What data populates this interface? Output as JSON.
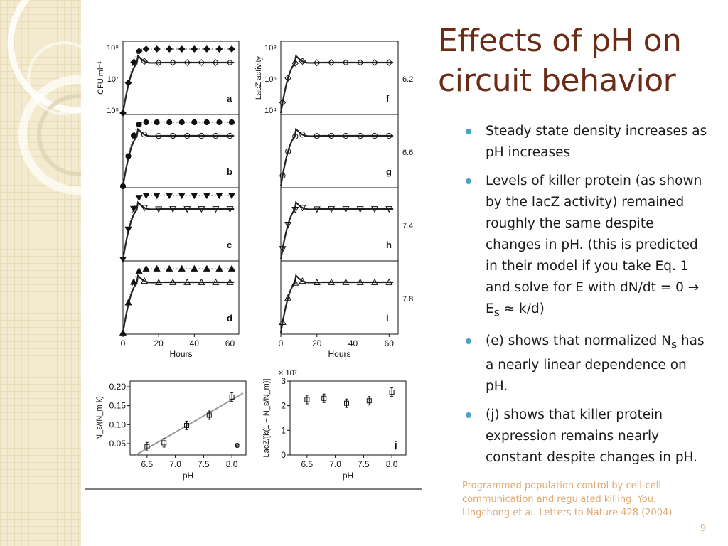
{
  "slide": {
    "title": "Effects of pH on circuit behavior",
    "bullets": [
      {
        "pre": "Steady state density increases as pH increases",
        "sub": "",
        "post": ""
      },
      {
        "pre": "Levels of killer protein (as shown by the lacZ activity) remained roughly the same despite changes in pH. (this is predicted in their model if you take Eq. 1 and solve for E with dN/dt = 0 → E",
        "sub": "s",
        "post": " ≈ k/d)"
      },
      {
        "pre": "(e) shows that normalized N",
        "sub": "s",
        "post": " has a nearly linear dependence on pH."
      },
      {
        "pre": "(j) shows that killer protein expression remains nearly constant despite changes in pH.",
        "sub": "",
        "post": ""
      }
    ],
    "citation": "Programmed population control by cell-cell communication and regulated killing. You, Lingchong et al. Letters to Nature 428 (2004)",
    "page_number": "9"
  },
  "colors": {
    "title": "#6b2c17",
    "bullet": "#4aa3c0",
    "citation": "#e0a872"
  },
  "chart_data": [
    {
      "type": "scatter",
      "panel": "a-d",
      "xlabel": "Hours",
      "ylabel": "CFU ml⁻¹",
      "log_y": true,
      "xlim": [
        0,
        65
      ],
      "xticks": [
        "0",
        "20",
        "40",
        "60"
      ],
      "yticks": [
        "10⁵",
        "10⁷",
        "10⁹"
      ],
      "panels": [
        {
          "letter": "a",
          "marker": "diamond"
        },
        {
          "letter": "b",
          "marker": "circle"
        },
        {
          "letter": "c",
          "marker": "triangle-down"
        },
        {
          "letter": "d",
          "marker": "triangle-up"
        }
      ]
    },
    {
      "type": "scatter",
      "panel": "f-i",
      "xlabel": "Hours",
      "ylabel": "LacZ activity",
      "log_y": true,
      "xlim": [
        0,
        65
      ],
      "xticks": [
        "0",
        "20",
        "40",
        "60"
      ],
      "yticks": [
        "10⁴",
        "10⁶",
        "10⁸"
      ],
      "panels": [
        {
          "letter": "f",
          "marker": "diamond",
          "ph": "6.2"
        },
        {
          "letter": "g",
          "marker": "circle",
          "ph": "6.6"
        },
        {
          "letter": "h",
          "marker": "triangle-down",
          "ph": "7.4"
        },
        {
          "letter": "i",
          "marker": "triangle-up",
          "ph": "7.8"
        }
      ]
    },
    {
      "type": "scatter",
      "panel": "e",
      "letter": "e",
      "xlabel": "pH",
      "ylabel": "N_s/(N_m k)",
      "xlim": [
        6.2,
        8.25
      ],
      "ylim": [
        0.02,
        0.215
      ],
      "xticks": [
        "6.5",
        "7.0",
        "7.5",
        "8.0"
      ],
      "yticks": [
        "0.05",
        "0.10",
        "0.15",
        "0.20"
      ],
      "x": [
        6.5,
        6.8,
        7.2,
        7.6,
        8.0
      ],
      "y": [
        0.042,
        0.052,
        0.098,
        0.125,
        0.173
      ],
      "fit": [
        [
          6.3,
          0.02
        ],
        [
          8.2,
          0.183
        ]
      ]
    },
    {
      "type": "scatter",
      "panel": "j",
      "letter": "j",
      "xlabel": "pH",
      "ylabel": "LacZ/[k(1 − N_s/N_m)]",
      "yunit": "× 10⁷",
      "xlim": [
        6.2,
        8.25
      ],
      "ylim": [
        0,
        3
      ],
      "xticks": [
        "6.5",
        "7.0",
        "7.5",
        "8.0"
      ],
      "yticks": [
        "0",
        "1",
        "2",
        "3"
      ],
      "x": [
        6.5,
        6.8,
        7.2,
        7.6,
        8.0
      ],
      "y": [
        2.25,
        2.3,
        2.1,
        2.2,
        2.55
      ]
    }
  ]
}
